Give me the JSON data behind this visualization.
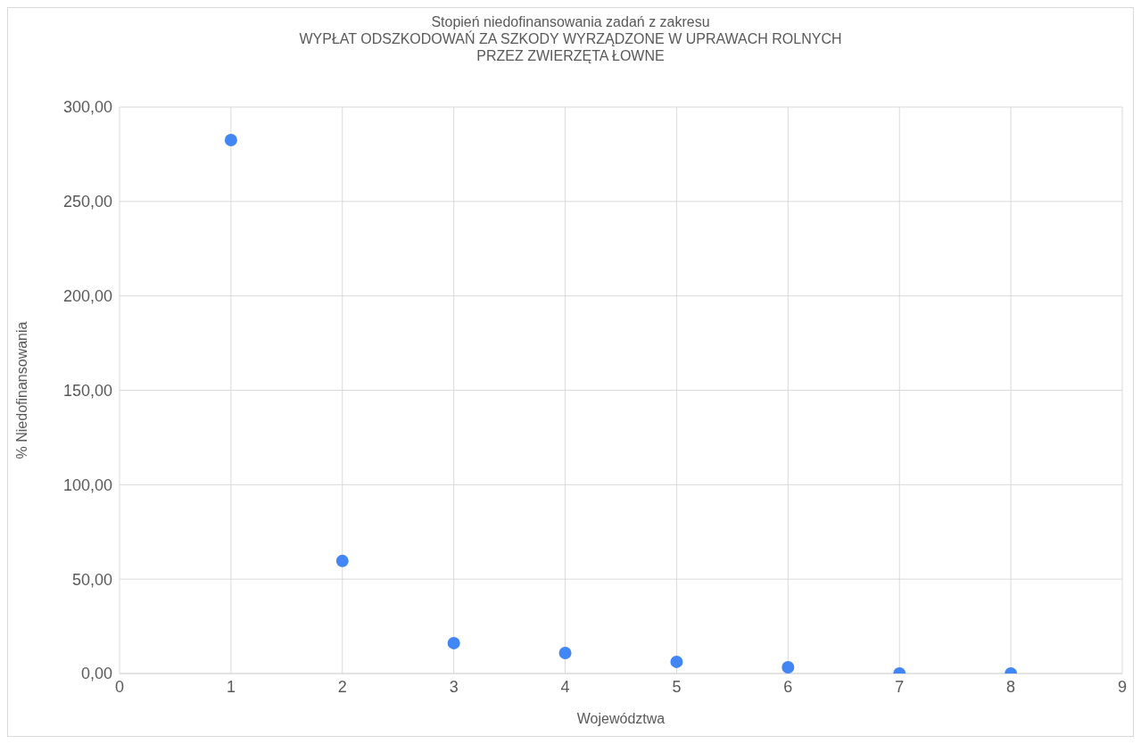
{
  "chart_data": {
    "type": "scatter",
    "title": "Stopień niedofinansowania zadań z zakresu\nWYPŁAT ODSZKODOWAŃ ZA SZKODY WYRZĄDZONE W UPRAWACH ROLNYCH\nPRZEZ ZWIERZĘTA ŁOWNE",
    "xlabel": "Województwa",
    "ylabel": "% Niedofinansowania",
    "x": [
      1,
      2,
      3,
      4,
      5,
      6,
      7,
      8
    ],
    "series": [
      {
        "color": "#4285f4",
        "values": [
          282.5,
          59.6,
          16.1,
          10.9,
          6.2,
          3.3,
          0,
          0
        ]
      }
    ],
    "xlim": [
      0,
      9
    ],
    "xticks": [
      0,
      1,
      2,
      3,
      4,
      5,
      6,
      7,
      8,
      9
    ],
    "ylim": [
      0,
      300
    ],
    "yticks": [
      {
        "value": 0,
        "label": "0,00"
      },
      {
        "value": 50,
        "label": "50,00"
      },
      {
        "value": 100,
        "label": "100,00"
      },
      {
        "value": 150,
        "label": "150,00"
      },
      {
        "value": 200,
        "label": "200,00"
      },
      {
        "value": 250,
        "label": "250,00"
      },
      {
        "value": 300,
        "label": "300,00"
      }
    ],
    "grid": true,
    "marker": "circle",
    "legend": false
  }
}
